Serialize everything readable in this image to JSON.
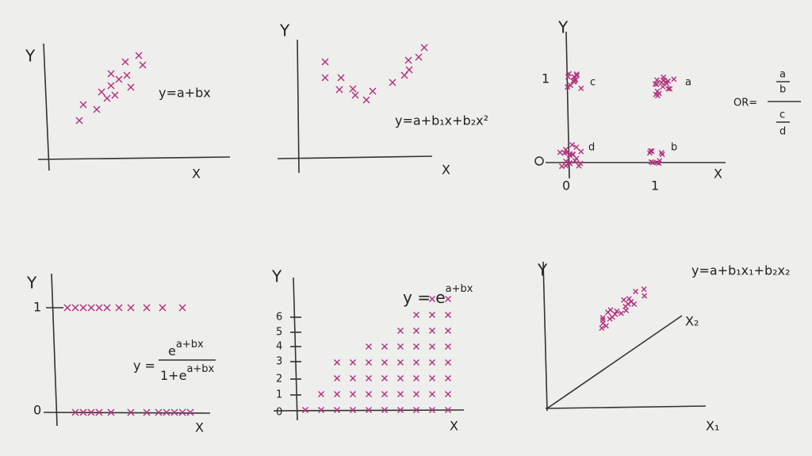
{
  "panels": [
    {
      "y_label": "Y",
      "x_label": "X",
      "formula": "y=a+bx"
    },
    {
      "y_label": "Y",
      "x_label": "X",
      "formula": "y=a+b₁x+b₂x²"
    },
    {
      "y_label": "Y",
      "x_label": "X",
      "y_tick": "1",
      "x_ticks": [
        "0",
        "1"
      ],
      "points": [
        "a",
        "b",
        "c",
        "d"
      ],
      "odds_ratio": {
        "label": "OR=",
        "numerator": [
          "a",
          "b"
        ],
        "denominator": [
          "c",
          "d"
        ]
      }
    },
    {
      "y_label": "Y",
      "x_label": "X",
      "y_ticks": [
        "0",
        "1"
      ],
      "formula": {
        "prefix": "y =",
        "numerator": "e",
        "numerator_exponent": "a+bx",
        "denominator": "1+e",
        "denominator_exponent": "a+bx"
      }
    },
    {
      "y_label": "Y",
      "x_label": "X",
      "y_ticks": [
        "0",
        "1",
        "2",
        "3",
        "4",
        "5",
        "6"
      ],
      "formula": {
        "base": "y = e",
        "exponent": "a+bx"
      }
    },
    {
      "y_label": "Y",
      "x1_label": "X₁",
      "x2_label": "X₂",
      "formula": "y=a+b₁x₁+b₂x₂"
    }
  ]
}
